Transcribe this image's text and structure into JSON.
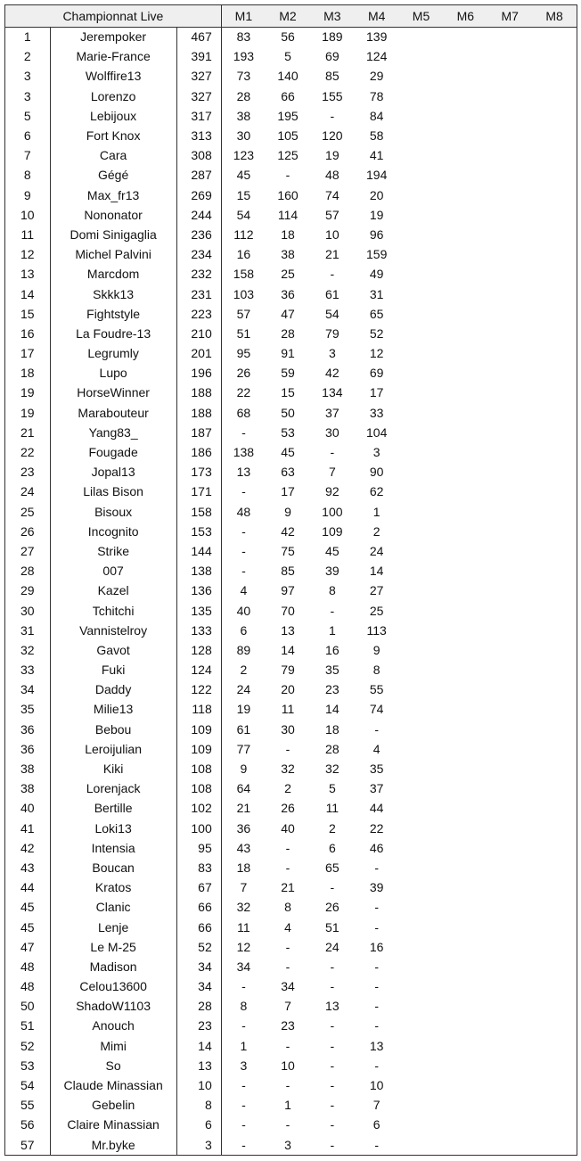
{
  "header": {
    "title": "Championnat Live",
    "rounds": [
      "M1",
      "M2",
      "M3",
      "M4",
      "M5",
      "M6",
      "M7",
      "M8"
    ]
  },
  "rows": [
    {
      "rank": "1",
      "name": "Jerempoker",
      "points": "467",
      "scores": [
        "83",
        "56",
        "189",
        "139",
        "",
        "",
        "",
        ""
      ]
    },
    {
      "rank": "2",
      "name": "Marie-France",
      "points": "391",
      "scores": [
        "193",
        "5",
        "69",
        "124",
        "",
        "",
        "",
        ""
      ]
    },
    {
      "rank": "3",
      "name": "Wolffire13",
      "points": "327",
      "scores": [
        "73",
        "140",
        "85",
        "29",
        "",
        "",
        "",
        ""
      ]
    },
    {
      "rank": "3",
      "name": "Lorenzo",
      "points": "327",
      "scores": [
        "28",
        "66",
        "155",
        "78",
        "",
        "",
        "",
        ""
      ]
    },
    {
      "rank": "5",
      "name": "Lebijoux",
      "points": "317",
      "scores": [
        "38",
        "195",
        "-",
        "84",
        "",
        "",
        "",
        ""
      ]
    },
    {
      "rank": "6",
      "name": "Fort Knox",
      "points": "313",
      "scores": [
        "30",
        "105",
        "120",
        "58",
        "",
        "",
        "",
        ""
      ]
    },
    {
      "rank": "7",
      "name": "Cara",
      "points": "308",
      "scores": [
        "123",
        "125",
        "19",
        "41",
        "",
        "",
        "",
        ""
      ]
    },
    {
      "rank": "8",
      "name": "Gégé",
      "points": "287",
      "scores": [
        "45",
        "-",
        "48",
        "194",
        "",
        "",
        "",
        ""
      ]
    },
    {
      "rank": "9",
      "name": "Max_fr13",
      "points": "269",
      "scores": [
        "15",
        "160",
        "74",
        "20",
        "",
        "",
        "",
        ""
      ]
    },
    {
      "rank": "10",
      "name": "Nononator",
      "points": "244",
      "scores": [
        "54",
        "114",
        "57",
        "19",
        "",
        "",
        "",
        ""
      ]
    },
    {
      "rank": "11",
      "name": "Domi Sinigaglia",
      "points": "236",
      "scores": [
        "112",
        "18",
        "10",
        "96",
        "",
        "",
        "",
        ""
      ]
    },
    {
      "rank": "12",
      "name": "Michel Palvini",
      "points": "234",
      "scores": [
        "16",
        "38",
        "21",
        "159",
        "",
        "",
        "",
        ""
      ]
    },
    {
      "rank": "13",
      "name": "Marcdom",
      "points": "232",
      "scores": [
        "158",
        "25",
        "-",
        "49",
        "",
        "",
        "",
        ""
      ]
    },
    {
      "rank": "14",
      "name": "Skkk13",
      "points": "231",
      "scores": [
        "103",
        "36",
        "61",
        "31",
        "",
        "",
        "",
        ""
      ]
    },
    {
      "rank": "15",
      "name": "Fightstyle",
      "points": "223",
      "scores": [
        "57",
        "47",
        "54",
        "65",
        "",
        "",
        "",
        ""
      ]
    },
    {
      "rank": "16",
      "name": "La Foudre-13",
      "points": "210",
      "scores": [
        "51",
        "28",
        "79",
        "52",
        "",
        "",
        "",
        ""
      ]
    },
    {
      "rank": "17",
      "name": "Legrumly",
      "points": "201",
      "scores": [
        "95",
        "91",
        "3",
        "12",
        "",
        "",
        "",
        ""
      ]
    },
    {
      "rank": "18",
      "name": "Lupo",
      "points": "196",
      "scores": [
        "26",
        "59",
        "42",
        "69",
        "",
        "",
        "",
        ""
      ]
    },
    {
      "rank": "19",
      "name": "HorseWinner",
      "points": "188",
      "scores": [
        "22",
        "15",
        "134",
        "17",
        "",
        "",
        "",
        ""
      ]
    },
    {
      "rank": "19",
      "name": "Marabouteur",
      "points": "188",
      "scores": [
        "68",
        "50",
        "37",
        "33",
        "",
        "",
        "",
        ""
      ]
    },
    {
      "rank": "21",
      "name": "Yang83_",
      "points": "187",
      "scores": [
        "-",
        "53",
        "30",
        "104",
        "",
        "",
        "",
        ""
      ]
    },
    {
      "rank": "22",
      "name": "Fougade",
      "points": "186",
      "scores": [
        "138",
        "45",
        "-",
        "3",
        "",
        "",
        "",
        ""
      ]
    },
    {
      "rank": "23",
      "name": "Jopal13",
      "points": "173",
      "scores": [
        "13",
        "63",
        "7",
        "90",
        "",
        "",
        "",
        ""
      ]
    },
    {
      "rank": "24",
      "name": "Lilas Bison",
      "points": "171",
      "scores": [
        "-",
        "17",
        "92",
        "62",
        "",
        "",
        "",
        ""
      ]
    },
    {
      "rank": "25",
      "name": "Bisoux",
      "points": "158",
      "scores": [
        "48",
        "9",
        "100",
        "1",
        "",
        "",
        "",
        ""
      ]
    },
    {
      "rank": "26",
      "name": "Incognito",
      "points": "153",
      "scores": [
        "-",
        "42",
        "109",
        "2",
        "",
        "",
        "",
        ""
      ]
    },
    {
      "rank": "27",
      "name": "Strike",
      "points": "144",
      "scores": [
        "-",
        "75",
        "45",
        "24",
        "",
        "",
        "",
        ""
      ]
    },
    {
      "rank": "28",
      "name": "007",
      "points": "138",
      "scores": [
        "-",
        "85",
        "39",
        "14",
        "",
        "",
        "",
        ""
      ]
    },
    {
      "rank": "29",
      "name": "Kazel",
      "points": "136",
      "scores": [
        "4",
        "97",
        "8",
        "27",
        "",
        "",
        "",
        ""
      ]
    },
    {
      "rank": "30",
      "name": "Tchitchi",
      "points": "135",
      "scores": [
        "40",
        "70",
        "-",
        "25",
        "",
        "",
        "",
        ""
      ]
    },
    {
      "rank": "31",
      "name": "Vannistelroy",
      "points": "133",
      "scores": [
        "6",
        "13",
        "1",
        "113",
        "",
        "",
        "",
        ""
      ]
    },
    {
      "rank": "32",
      "name": "Gavot",
      "points": "128",
      "scores": [
        "89",
        "14",
        "16",
        "9",
        "",
        "",
        "",
        ""
      ]
    },
    {
      "rank": "33",
      "name": "Fuki",
      "points": "124",
      "scores": [
        "2",
        "79",
        "35",
        "8",
        "",
        "",
        "",
        ""
      ]
    },
    {
      "rank": "34",
      "name": "Daddy",
      "points": "122",
      "scores": [
        "24",
        "20",
        "23",
        "55",
        "",
        "",
        "",
        ""
      ]
    },
    {
      "rank": "35",
      "name": "Milie13",
      "points": "118",
      "scores": [
        "19",
        "11",
        "14",
        "74",
        "",
        "",
        "",
        ""
      ]
    },
    {
      "rank": "36",
      "name": "Bebou",
      "points": "109",
      "scores": [
        "61",
        "30",
        "18",
        "-",
        "",
        "",
        "",
        ""
      ]
    },
    {
      "rank": "36",
      "name": "Leroijulian",
      "points": "109",
      "scores": [
        "77",
        "-",
        "28",
        "4",
        "",
        "",
        "",
        ""
      ]
    },
    {
      "rank": "38",
      "name": "Kiki",
      "points": "108",
      "scores": [
        "9",
        "32",
        "32",
        "35",
        "",
        "",
        "",
        ""
      ]
    },
    {
      "rank": "38",
      "name": "Lorenjack",
      "points": "108",
      "scores": [
        "64",
        "2",
        "5",
        "37",
        "",
        "",
        "",
        ""
      ]
    },
    {
      "rank": "40",
      "name": "Bertille",
      "points": "102",
      "scores": [
        "21",
        "26",
        "11",
        "44",
        "",
        "",
        "",
        ""
      ]
    },
    {
      "rank": "41",
      "name": "Loki13",
      "points": "100",
      "scores": [
        "36",
        "40",
        "2",
        "22",
        "",
        "",
        "",
        ""
      ]
    },
    {
      "rank": "42",
      "name": "Intensia",
      "points": "95",
      "scores": [
        "43",
        "-",
        "6",
        "46",
        "",
        "",
        "",
        ""
      ]
    },
    {
      "rank": "43",
      "name": "Boucan",
      "points": "83",
      "scores": [
        "18",
        "-",
        "65",
        "-",
        "",
        "",
        "",
        ""
      ]
    },
    {
      "rank": "44",
      "name": "Kratos",
      "points": "67",
      "scores": [
        "7",
        "21",
        "-",
        "39",
        "",
        "",
        "",
        ""
      ]
    },
    {
      "rank": "45",
      "name": "Clanic",
      "points": "66",
      "scores": [
        "32",
        "8",
        "26",
        "-",
        "",
        "",
        "",
        ""
      ]
    },
    {
      "rank": "45",
      "name": "Lenje",
      "points": "66",
      "scores": [
        "11",
        "4",
        "51",
        "-",
        "",
        "",
        "",
        ""
      ]
    },
    {
      "rank": "47",
      "name": "Le M-25",
      "points": "52",
      "scores": [
        "12",
        "-",
        "24",
        "16",
        "",
        "",
        "",
        ""
      ]
    },
    {
      "rank": "48",
      "name": "Madison",
      "points": "34",
      "scores": [
        "34",
        "-",
        "-",
        "-",
        "",
        "",
        "",
        ""
      ]
    },
    {
      "rank": "48",
      "name": "Celou13600",
      "points": "34",
      "scores": [
        "-",
        "34",
        "-",
        "-",
        "",
        "",
        "",
        ""
      ]
    },
    {
      "rank": "50",
      "name": "ShadoW1103",
      "points": "28",
      "scores": [
        "8",
        "7",
        "13",
        "-",
        "",
        "",
        "",
        ""
      ]
    },
    {
      "rank": "51",
      "name": "Anouch",
      "points": "23",
      "scores": [
        "-",
        "23",
        "-",
        "-",
        "",
        "",
        "",
        ""
      ]
    },
    {
      "rank": "52",
      "name": "Mimi",
      "points": "14",
      "scores": [
        "1",
        "-",
        "-",
        "13",
        "",
        "",
        "",
        ""
      ]
    },
    {
      "rank": "53",
      "name": "So",
      "points": "13",
      "scores": [
        "3",
        "10",
        "-",
        "-",
        "",
        "",
        "",
        ""
      ]
    },
    {
      "rank": "54",
      "name": "Claude Minassian",
      "points": "10",
      "scores": [
        "-",
        "-",
        "-",
        "10",
        "",
        "",
        "",
        ""
      ]
    },
    {
      "rank": "55",
      "name": "Gebelin",
      "points": "8",
      "scores": [
        "-",
        "1",
        "-",
        "7",
        "",
        "",
        "",
        ""
      ]
    },
    {
      "rank": "56",
      "name": "Claire Minassian",
      "points": "6",
      "scores": [
        "-",
        "-",
        "-",
        "6",
        "",
        "",
        "",
        ""
      ]
    },
    {
      "rank": "57",
      "name": "Mr.byke",
      "points": "3",
      "scores": [
        "-",
        "3",
        "-",
        "-",
        "",
        "",
        "",
        ""
      ]
    }
  ]
}
